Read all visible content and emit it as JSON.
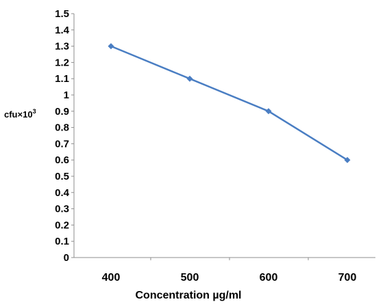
{
  "chart_data": {
    "type": "line",
    "title": "",
    "xlabel": "Concentration µg/ml",
    "ylabel": "cfu×10",
    "ylabel_superscript": "3",
    "categories": [
      "400",
      "500",
      "600",
      "700"
    ],
    "series": [
      {
        "values": [
          1.3,
          1.1,
          0.9,
          0.6
        ]
      }
    ],
    "ylim": [
      0,
      1.5
    ],
    "y_ticks": [
      "0",
      "0.1",
      "0.2",
      "0.3",
      "0.4",
      "0.5",
      "0.6",
      "0.7",
      "0.8",
      "0.9",
      "1",
      "1.1",
      "1.2",
      "1.3",
      "1.4",
      "1.5"
    ],
    "grid": false,
    "legend": "none",
    "line_color": "#4a7ec3",
    "marker": "diamond"
  }
}
